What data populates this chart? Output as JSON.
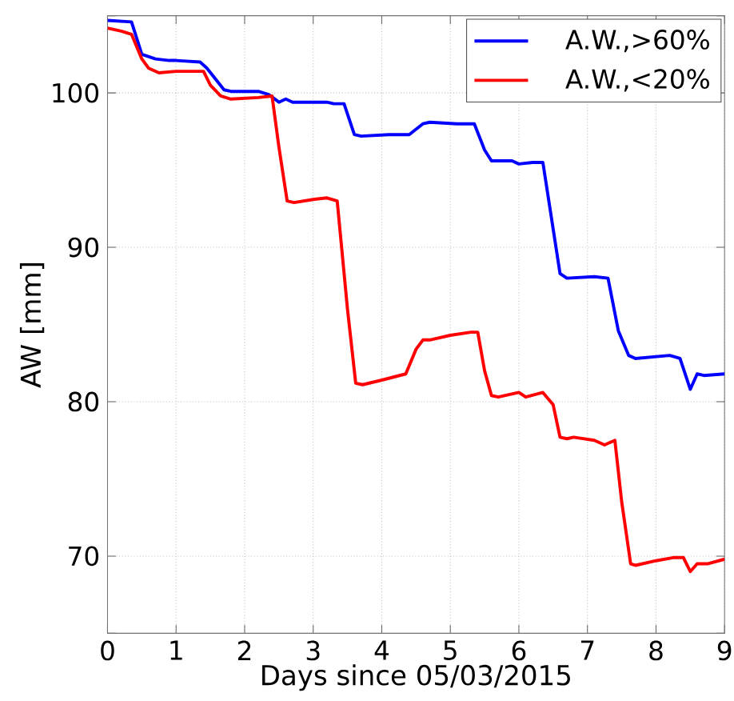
{
  "chart_data": {
    "type": "line",
    "xlabel": "Days since 05/03/2015",
    "ylabel": "AW [mm]",
    "xlim": [
      0,
      9
    ],
    "ylim": [
      65,
      105
    ],
    "xticks": [
      0,
      1,
      2,
      3,
      4,
      5,
      6,
      7,
      8,
      9
    ],
    "yticks": [
      {
        "value": 65,
        "label": null
      },
      70,
      80,
      90,
      100,
      {
        "value": 105,
        "label": null
      }
    ],
    "grid": true,
    "legend": "top right",
    "marker": "none",
    "line_style": "solid",
    "series": [
      {
        "name": "A.W.,>60%",
        "color": "#0000ff",
        "x": [
          0,
          0.35,
          0.5,
          0.7,
          0.9,
          1.0,
          1.35,
          1.45,
          1.7,
          1.8,
          2.2,
          2.35,
          2.5,
          2.6,
          2.7,
          3.0,
          3.2,
          3.3,
          3.45,
          3.6,
          3.7,
          4.1,
          4.4,
          4.6,
          4.7,
          5.1,
          5.35,
          5.5,
          5.6,
          5.9,
          6.0,
          6.2,
          6.35,
          6.6,
          6.7,
          7.1,
          7.3,
          7.45,
          7.6,
          7.7,
          8.2,
          8.35,
          8.5,
          8.6,
          8.7,
          9.0
        ],
        "values": [
          104.7,
          104.6,
          102.5,
          102.2,
          102.1,
          102.1,
          102.0,
          101.6,
          100.2,
          100.1,
          100.1,
          99.9,
          99.4,
          99.6,
          99.4,
          99.4,
          99.4,
          99.3,
          99.3,
          97.3,
          97.2,
          97.3,
          97.3,
          98.0,
          98.1,
          98.0,
          98.0,
          96.3,
          95.6,
          95.6,
          95.4,
          95.5,
          95.5,
          88.3,
          88.0,
          88.1,
          88.0,
          84.6,
          83.0,
          82.8,
          83.0,
          82.8,
          80.8,
          81.8,
          81.7,
          81.8
        ]
      },
      {
        "name": "A.W.,<20%",
        "color": "#ff0000",
        "x": [
          0,
          0.2,
          0.35,
          0.5,
          0.6,
          0.75,
          1.0,
          1.4,
          1.5,
          1.65,
          1.8,
          2.2,
          2.4,
          2.5,
          2.62,
          2.72,
          3.0,
          3.2,
          3.35,
          3.5,
          3.62,
          3.72,
          4.0,
          4.35,
          4.5,
          4.6,
          4.7,
          5.0,
          5.3,
          5.4,
          5.5,
          5.6,
          5.7,
          6.0,
          6.1,
          6.35,
          6.5,
          6.6,
          6.7,
          6.8,
          7.1,
          7.25,
          7.4,
          7.5,
          7.63,
          7.7,
          8.0,
          8.25,
          8.4,
          8.5,
          8.6,
          8.75,
          9.0
        ],
        "values": [
          104.2,
          104.0,
          103.8,
          102.2,
          101.6,
          101.3,
          101.4,
          101.4,
          100.5,
          99.8,
          99.6,
          99.7,
          99.8,
          96.5,
          93.0,
          92.9,
          93.1,
          93.2,
          93.0,
          86.0,
          81.2,
          81.1,
          81.4,
          81.8,
          83.4,
          84.0,
          84.0,
          84.3,
          84.5,
          84.5,
          82.0,
          80.4,
          80.3,
          80.6,
          80.3,
          80.6,
          79.8,
          77.7,
          77.6,
          77.7,
          77.5,
          77.2,
          77.5,
          73.5,
          69.5,
          69.4,
          69.7,
          69.9,
          69.9,
          69.0,
          69.5,
          69.5,
          69.8
        ]
      }
    ]
  }
}
